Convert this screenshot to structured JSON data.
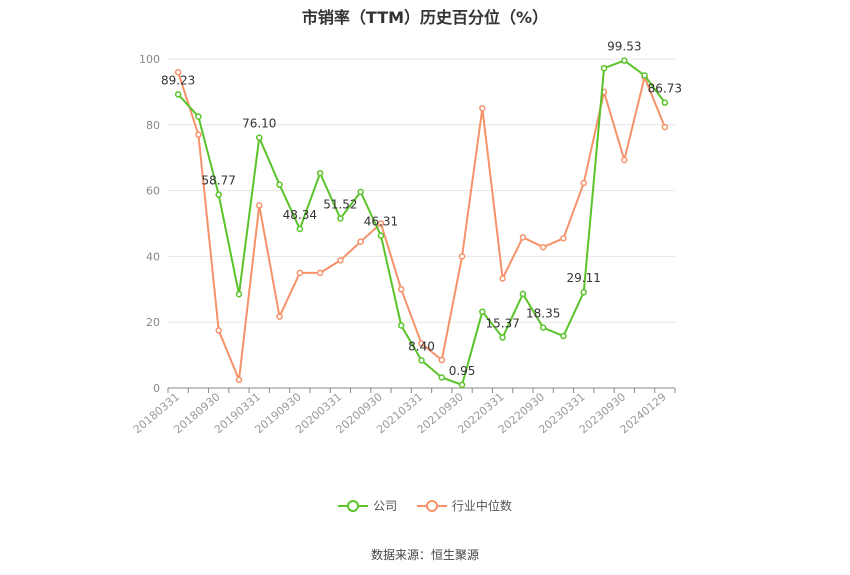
{
  "chart_data": {
    "type": "line",
    "title": "市销率（TTM）历史百分位（%）",
    "xlabel": "",
    "ylabel": "",
    "ylim": [
      0,
      100
    ],
    "yticks": [
      0,
      20,
      40,
      60,
      80,
      100
    ],
    "grid": true,
    "legend_position": "bottom",
    "xtick_labels": [
      "20180331",
      "20180930",
      "20190331",
      "20190930",
      "20200331",
      "20200930",
      "20210331",
      "20210930",
      "20220331",
      "20220930",
      "20230331",
      "20230930",
      "20240129"
    ],
    "series": [
      {
        "name": "公司",
        "color": "#5ac32a",
        "values": [
          89.23,
          82.5,
          58.77,
          28.5,
          76.1,
          61.8,
          48.34,
          65.3,
          51.52,
          59.6,
          46.31,
          19.0,
          8.4,
          3.2,
          0.95,
          23.2,
          15.37,
          28.6,
          18.35,
          15.8,
          29.11,
          97.2,
          99.53,
          95.0,
          86.73
        ],
        "labels": {
          "0": "89.23",
          "2": "58.77",
          "4": "76.10",
          "6": "48.34",
          "8": "51.52",
          "10": "46.31",
          "12": "8.40",
          "14": "0.95",
          "16": "15.37",
          "18": "18.35",
          "20": "29.11",
          "22": "99.53",
          "24": "86.73"
        }
      },
      {
        "name": "行业中位数",
        "color": "#f5926a",
        "values": [
          96.0,
          77.0,
          17.5,
          2.5,
          55.5,
          21.7,
          35.0,
          35.0,
          38.8,
          44.5,
          50.0,
          30.0,
          13.5,
          8.5,
          40.0,
          85.0,
          33.3,
          45.8,
          42.8,
          45.5,
          62.3,
          90.0,
          69.3,
          94.5,
          79.3
        ]
      }
    ]
  },
  "legend": {
    "company_label": "公司",
    "industry_label": "行业中位数"
  },
  "source": "数据来源：恒生聚源"
}
